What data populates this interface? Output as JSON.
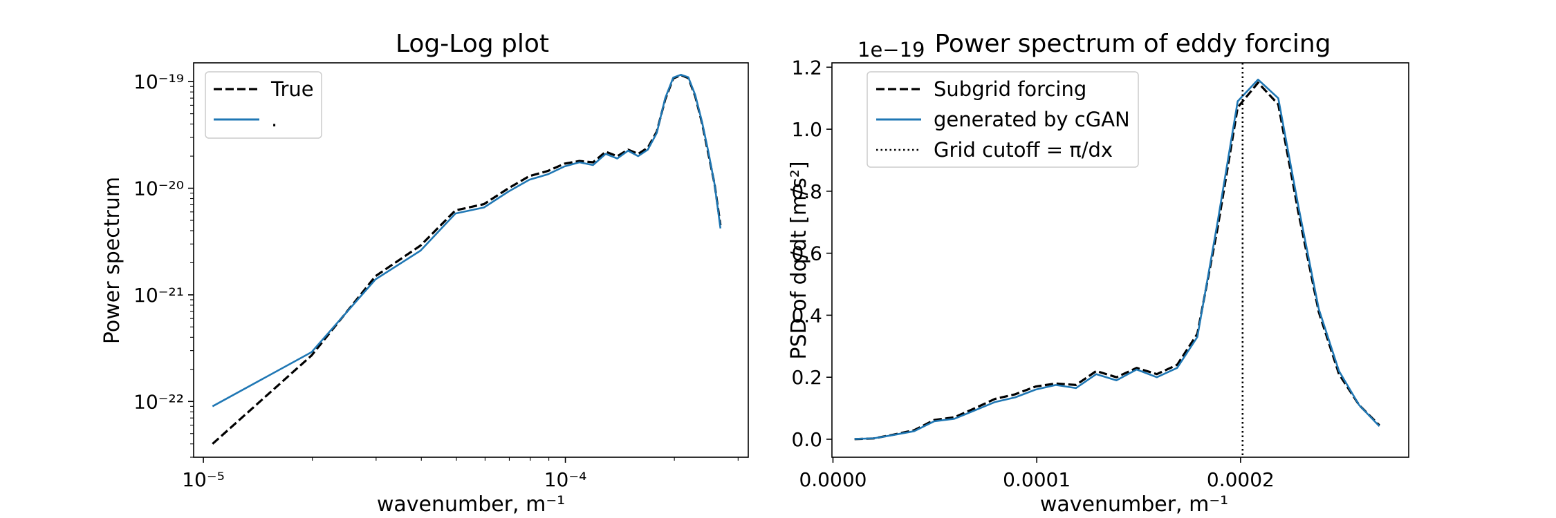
{
  "colors": {
    "true_line": "#000000",
    "cgan_line": "#1f77b4",
    "cutoff_line": "#000000"
  },
  "chart_data": [
    {
      "type": "line",
      "title": "Log-Log plot",
      "xlabel": "wavenumber, m⁻¹",
      "ylabel": "Power spectrum",
      "xscale": "log",
      "yscale": "log",
      "xlim": [
        9.4e-06,
        0.00032
      ],
      "ylim": [
        3e-23,
        1.5e-19
      ],
      "xticks": [
        {
          "value": 1e-05,
          "label": "10⁻⁵"
        },
        {
          "value": 0.0001,
          "label": "10⁻⁴"
        }
      ],
      "yticks": [
        {
          "value": 1e-22,
          "label": "10⁻²²"
        },
        {
          "value": 1e-21,
          "label": "10⁻²¹"
        },
        {
          "value": 1e-20,
          "label": "10⁻²⁰"
        },
        {
          "value": 1e-19,
          "label": "10⁻¹⁹"
        }
      ],
      "grid": false,
      "legend": "upper left",
      "x": [
        1.06e-05,
        1.99e-05,
        2.99e-05,
        3.98e-05,
        4.97e-05,
        5.96e-05,
        6.96e-05,
        7.95e-05,
        8.94e-05,
        9.94e-05,
        0.0001093,
        0.0001192,
        0.0001292,
        0.0001391,
        0.000149,
        0.0001589,
        0.0001689,
        0.0001788,
        0.0001887,
        0.0001986,
        0.0002086,
        0.0002185,
        0.0002284,
        0.0002384,
        0.0002483,
        0.0002582,
        0.0002681
      ],
      "series": [
        {
          "name": "True",
          "style": "dashed",
          "color": "#000000",
          "values": [
            4e-23,
            2.7e-22,
            1.5e-21,
            2.9e-21,
            6.2e-21,
            7.1e-21,
            1e-20,
            1.3e-20,
            1.45e-20,
            1.7e-20,
            1.8e-20,
            1.75e-20,
            2.2e-20,
            2e-20,
            2.3e-20,
            2.1e-20,
            2.4e-20,
            3.4e-20,
            6.8e-20,
            1.07e-19,
            1.15e-19,
            1.08e-19,
            7.3e-20,
            4.1e-20,
            2.1e-20,
            1.1e-20,
            4.5e-21
          ]
        },
        {
          "name": ".",
          "style": "solid",
          "color": "#1f77b4",
          "values": [
            9e-23,
            2.9e-22,
            1.4e-21,
            2.6e-21,
            5.8e-21,
            6.6e-21,
            9.3e-21,
            1.2e-20,
            1.35e-20,
            1.6e-20,
            1.75e-20,
            1.65e-20,
            2.1e-20,
            1.9e-20,
            2.25e-20,
            2e-20,
            2.3e-20,
            3.3e-20,
            7e-20,
            1.09e-19,
            1.16e-19,
            1.1e-19,
            7.5e-20,
            4.2e-20,
            2.2e-20,
            1.1e-20,
            4.2e-21
          ]
        }
      ]
    },
    {
      "type": "line",
      "title": "Power spectrum of eddy forcing",
      "xlabel": "wavenumber, m⁻¹",
      "ylabel": "PSD of dq/dt [m/s²]",
      "offset_text": "1e−19",
      "xscale": "linear",
      "yscale": "linear",
      "xlim": [
        -5e-07,
        0.0002825
      ],
      "ylim": [
        -5.8e-21,
        1.214e-19
      ],
      "xticks": [
        {
          "value": 0,
          "label": "0.0000"
        },
        {
          "value": 0.0001,
          "label": "0.0001"
        },
        {
          "value": 0.0002,
          "label": "0.0002"
        }
      ],
      "yticks": [
        {
          "value": 0,
          "label": "0.0"
        },
        {
          "value": 2e-20,
          "label": "0.2"
        },
        {
          "value": 4e-20,
          "label": "0.4"
        },
        {
          "value": 6e-20,
          "label": "0.6"
        },
        {
          "value": 8e-20,
          "label": "0.8"
        },
        {
          "value": 1e-19,
          "label": "1.0"
        },
        {
          "value": 1.2e-19,
          "label": "1.2"
        }
      ],
      "grid": false,
      "legend": "upper left",
      "vline": {
        "x": 0.000201,
        "label": "Grid cutoff = π/dx",
        "style": "dotted"
      },
      "x": [
        1.06e-05,
        1.99e-05,
        2.99e-05,
        3.98e-05,
        4.97e-05,
        5.96e-05,
        6.96e-05,
        7.95e-05,
        8.94e-05,
        9.94e-05,
        0.0001093,
        0.0001192,
        0.0001292,
        0.0001391,
        0.000149,
        0.0001589,
        0.0001689,
        0.0001788,
        0.0001887,
        0.0001986,
        0.0002086,
        0.0002185,
        0.0002284,
        0.0002384,
        0.0002483,
        0.0002582,
        0.0002681
      ],
      "series": [
        {
          "name": "Subgrid forcing",
          "style": "dashed",
          "color": "#000000",
          "values": [
            4e-23,
            2.7e-22,
            1.5e-21,
            2.9e-21,
            6.2e-21,
            7.1e-21,
            1e-20,
            1.3e-20,
            1.45e-20,
            1.7e-20,
            1.8e-20,
            1.75e-20,
            2.2e-20,
            2e-20,
            2.3e-20,
            2.1e-20,
            2.4e-20,
            3.4e-20,
            6.8e-20,
            1.07e-19,
            1.15e-19,
            1.08e-19,
            7.3e-20,
            4.1e-20,
            2.1e-20,
            1.1e-20,
            4.5e-21
          ]
        },
        {
          "name": "generated by cGAN",
          "style": "solid",
          "color": "#1f77b4",
          "values": [
            9e-23,
            2.9e-22,
            1.4e-21,
            2.6e-21,
            5.8e-21,
            6.6e-21,
            9.3e-21,
            1.2e-20,
            1.35e-20,
            1.6e-20,
            1.75e-20,
            1.65e-20,
            2.1e-20,
            1.9e-20,
            2.25e-20,
            2e-20,
            2.3e-20,
            3.3e-20,
            7e-20,
            1.09e-19,
            1.16e-19,
            1.1e-19,
            7.5e-20,
            4.2e-20,
            2.2e-20,
            1.1e-20,
            4.2e-21
          ]
        }
      ]
    }
  ]
}
